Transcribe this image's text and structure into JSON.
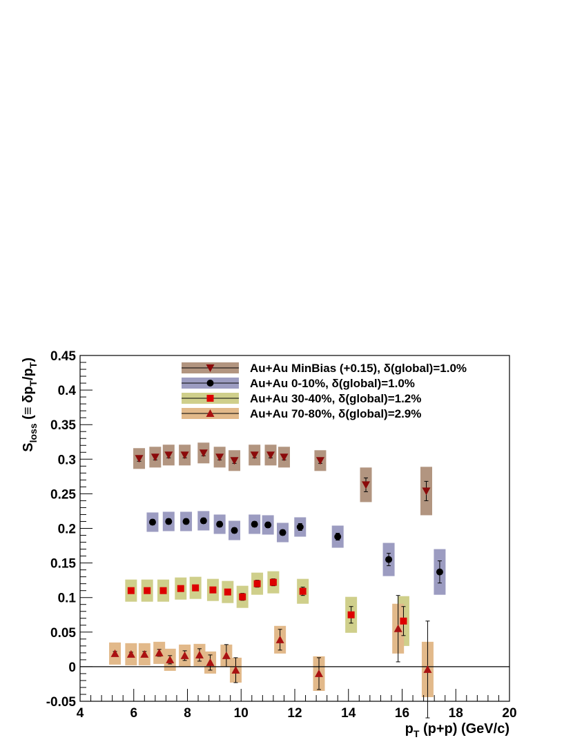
{
  "chart_data": {
    "type": "scatter",
    "xlabel_main": "p",
    "xlabel_sub": "T",
    "xlabel_rest": " (p+p) (GeV/c)",
    "ylabel_main": "S",
    "ylabel_sub": "loss",
    "ylabel_rest_a": " (≡ δp",
    "ylabel_sub2": "T",
    "ylabel_rest_b": "/p",
    "ylabel_sub3": "T",
    "ylabel_rest_c": ")",
    "xlim": [
      4,
      20
    ],
    "ylim": [
      -0.05,
      0.45
    ],
    "x_ticks": [
      "4",
      "6",
      "8",
      "10",
      "12",
      "14",
      "16",
      "18",
      "20"
    ],
    "y_ticks": [
      "-0.05",
      "0",
      "0.05",
      "0.1",
      "0.15",
      "0.2",
      "0.25",
      "0.3",
      "0.35",
      "0.4",
      "0.45"
    ],
    "grid": false,
    "zero_line": true,
    "legend_position": "top-right",
    "series": [
      {
        "name": "Au+Au MinBias (+0.15), δ(global)=1.0%",
        "marker": "triangle-down",
        "marker_color": "#8b0a0a",
        "box_color": "#b29580",
        "points": [
          {
            "x": 6.2,
            "y": 0.301,
            "err": 0.004,
            "sys": 0.015
          },
          {
            "x": 6.8,
            "y": 0.303,
            "err": 0.004,
            "sys": 0.015
          },
          {
            "x": 7.3,
            "y": 0.306,
            "err": 0.004,
            "sys": 0.015
          },
          {
            "x": 7.9,
            "y": 0.306,
            "err": 0.004,
            "sys": 0.015
          },
          {
            "x": 8.6,
            "y": 0.309,
            "err": 0.004,
            "sys": 0.015
          },
          {
            "x": 9.2,
            "y": 0.303,
            "err": 0.004,
            "sys": 0.015
          },
          {
            "x": 9.75,
            "y": 0.298,
            "err": 0.004,
            "sys": 0.015
          },
          {
            "x": 10.5,
            "y": 0.306,
            "err": 0.004,
            "sys": 0.015
          },
          {
            "x": 11.1,
            "y": 0.306,
            "err": 0.004,
            "sys": 0.015
          },
          {
            "x": 11.6,
            "y": 0.303,
            "err": 0.004,
            "sys": 0.015
          },
          {
            "x": 12.95,
            "y": 0.298,
            "err": 0.004,
            "sys": 0.015
          },
          {
            "x": 14.65,
            "y": 0.263,
            "err": 0.01,
            "sys": 0.025
          },
          {
            "x": 16.9,
            "y": 0.254,
            "err": 0.014,
            "sys": 0.035
          }
        ]
      },
      {
        "name": "Au+Au 0-10%, δ(global)=1.0%",
        "marker": "circle",
        "marker_color": "#000000",
        "box_color": "#9c9cc1",
        "points": [
          {
            "x": 6.7,
            "y": 0.209,
            "err": 0.004,
            "sys": 0.014
          },
          {
            "x": 7.3,
            "y": 0.21,
            "err": 0.004,
            "sys": 0.014
          },
          {
            "x": 7.95,
            "y": 0.21,
            "err": 0.004,
            "sys": 0.014
          },
          {
            "x": 8.6,
            "y": 0.211,
            "err": 0.004,
            "sys": 0.014
          },
          {
            "x": 9.2,
            "y": 0.206,
            "err": 0.004,
            "sys": 0.014
          },
          {
            "x": 9.75,
            "y": 0.197,
            "err": 0.004,
            "sys": 0.014
          },
          {
            "x": 10.5,
            "y": 0.206,
            "err": 0.004,
            "sys": 0.014
          },
          {
            "x": 11.0,
            "y": 0.205,
            "err": 0.004,
            "sys": 0.014
          },
          {
            "x": 11.55,
            "y": 0.194,
            "err": 0.004,
            "sys": 0.014
          },
          {
            "x": 12.2,
            "y": 0.202,
            "err": 0.005,
            "sys": 0.014
          },
          {
            "x": 13.6,
            "y": 0.188,
            "err": 0.005,
            "sys": 0.016
          },
          {
            "x": 15.5,
            "y": 0.155,
            "err": 0.009,
            "sys": 0.024
          },
          {
            "x": 17.4,
            "y": 0.137,
            "err": 0.016,
            "sys": 0.033
          }
        ]
      },
      {
        "name": "Au+Au 30-40%, δ(global)=1.2%",
        "marker": "square",
        "marker_color": "#dd0000",
        "box_color": "#cfcf8b",
        "points": [
          {
            "x": 5.9,
            "y": 0.11,
            "err": 0.003,
            "sys": 0.016
          },
          {
            "x": 6.5,
            "y": 0.11,
            "err": 0.003,
            "sys": 0.016
          },
          {
            "x": 7.1,
            "y": 0.11,
            "err": 0.003,
            "sys": 0.016
          },
          {
            "x": 7.75,
            "y": 0.113,
            "err": 0.003,
            "sys": 0.016
          },
          {
            "x": 8.3,
            "y": 0.114,
            "err": 0.004,
            "sys": 0.016
          },
          {
            "x": 8.95,
            "y": 0.111,
            "err": 0.004,
            "sys": 0.016
          },
          {
            "x": 9.5,
            "y": 0.108,
            "err": 0.004,
            "sys": 0.016
          },
          {
            "x": 10.05,
            "y": 0.101,
            "err": 0.005,
            "sys": 0.016
          },
          {
            "x": 10.6,
            "y": 0.12,
            "err": 0.005,
            "sys": 0.016
          },
          {
            "x": 11.2,
            "y": 0.122,
            "err": 0.005,
            "sys": 0.016
          },
          {
            "x": 12.3,
            "y": 0.109,
            "err": 0.006,
            "sys": 0.018
          },
          {
            "x": 14.1,
            "y": 0.075,
            "err": 0.012,
            "sys": 0.026
          },
          {
            "x": 16.05,
            "y": 0.066,
            "err": 0.021,
            "sys": 0.036
          }
        ]
      },
      {
        "name": "Au+Au 70-80%, δ(global)=2.9%",
        "marker": "triangle-up",
        "marker_color": "#aa1111",
        "box_color": "#e2b98a",
        "points": [
          {
            "x": 5.3,
            "y": 0.019,
            "err": 0.003,
            "sys": 0.016
          },
          {
            "x": 5.9,
            "y": 0.018,
            "err": 0.003,
            "sys": 0.016
          },
          {
            "x": 6.4,
            "y": 0.018,
            "err": 0.004,
            "sys": 0.016
          },
          {
            "x": 6.95,
            "y": 0.02,
            "err": 0.005,
            "sys": 0.016
          },
          {
            "x": 7.35,
            "y": 0.01,
            "err": 0.006,
            "sys": 0.016
          },
          {
            "x": 7.9,
            "y": 0.016,
            "err": 0.007,
            "sys": 0.016
          },
          {
            "x": 8.45,
            "y": 0.017,
            "err": 0.009,
            "sys": 0.016
          },
          {
            "x": 8.85,
            "y": 0.006,
            "err": 0.011,
            "sys": 0.016
          },
          {
            "x": 9.45,
            "y": 0.016,
            "err": 0.016,
            "sys": 0.016
          },
          {
            "x": 9.8,
            "y": -0.005,
            "err": 0.018,
            "sys": 0.018
          },
          {
            "x": 11.45,
            "y": 0.039,
            "err": 0.015,
            "sys": 0.02
          },
          {
            "x": 12.9,
            "y": -0.01,
            "err": 0.023,
            "sys": 0.025
          },
          {
            "x": 15.85,
            "y": 0.055,
            "err": 0.048,
            "sys": 0.036
          },
          {
            "x": 16.95,
            "y": -0.004,
            "err": 0.07,
            "sys": 0.04
          }
        ]
      }
    ]
  }
}
